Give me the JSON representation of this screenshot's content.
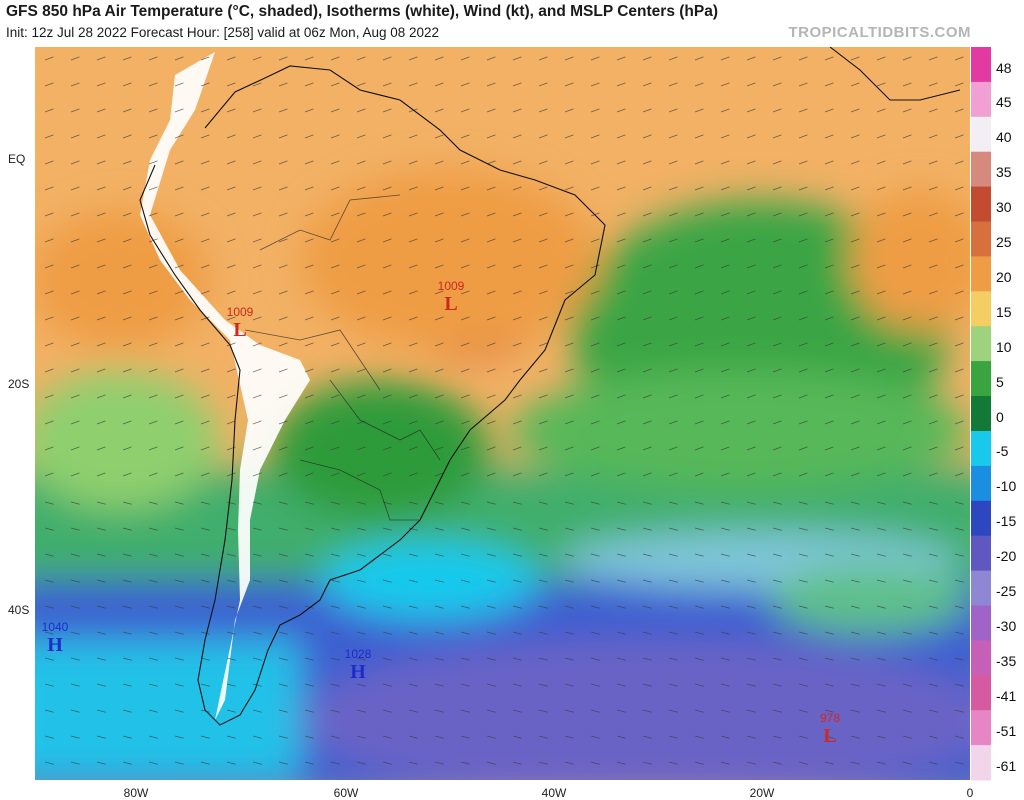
{
  "header": {
    "title": "GFS 850 hPa Air Temperature (°C, shaded), Isotherms (white), Wind (kt), and MSLP Centers (hPa)",
    "subtitle": "Init: 12z Jul 28 2022   Forecast Hour: [258]   valid at 06z Mon, Aug 08 2022",
    "brand": "TROPICALTIDBITS.COM"
  },
  "axes": {
    "lat_labels": [
      "EQ",
      "20S",
      "40S"
    ],
    "lon_labels": [
      "80W",
      "60W",
      "40W",
      "20W",
      "0"
    ]
  },
  "colorbar": {
    "labels": [
      "48",
      "45",
      "40",
      "35",
      "30",
      "25",
      "20",
      "15",
      "10",
      "5",
      "0",
      "-5",
      "-10",
      "-15",
      "-20",
      "-25",
      "-30",
      "-35",
      "-41",
      "-51",
      "-61"
    ],
    "colors": [
      "#e23aa0",
      "#f0a0d2",
      "#f3eef3",
      "#d58a7d",
      "#c24b30",
      "#d8703d",
      "#ef9d45",
      "#f4cd63",
      "#9ed27c",
      "#3aa53e",
      "#127a36",
      "#18c9ec",
      "#1a8ee0",
      "#2c47c0",
      "#5e58c0",
      "#8f86d4",
      "#a063c8",
      "#c65fb7",
      "#d65aa0",
      "#e786c4",
      "#f0d5eb"
    ]
  },
  "pressure_centers": [
    {
      "value": "1009",
      "letter": "L",
      "color": "#cc2a1f"
    },
    {
      "value": "1009",
      "letter": "L",
      "color": "#cc2a1f"
    },
    {
      "value": "1040",
      "letter": "H",
      "color": "#1d2cc8"
    },
    {
      "value": "1028",
      "letter": "H",
      "color": "#1d2cc8"
    },
    {
      "value": "978",
      "letter": "L",
      "color": "#cc2a1f"
    }
  ]
}
